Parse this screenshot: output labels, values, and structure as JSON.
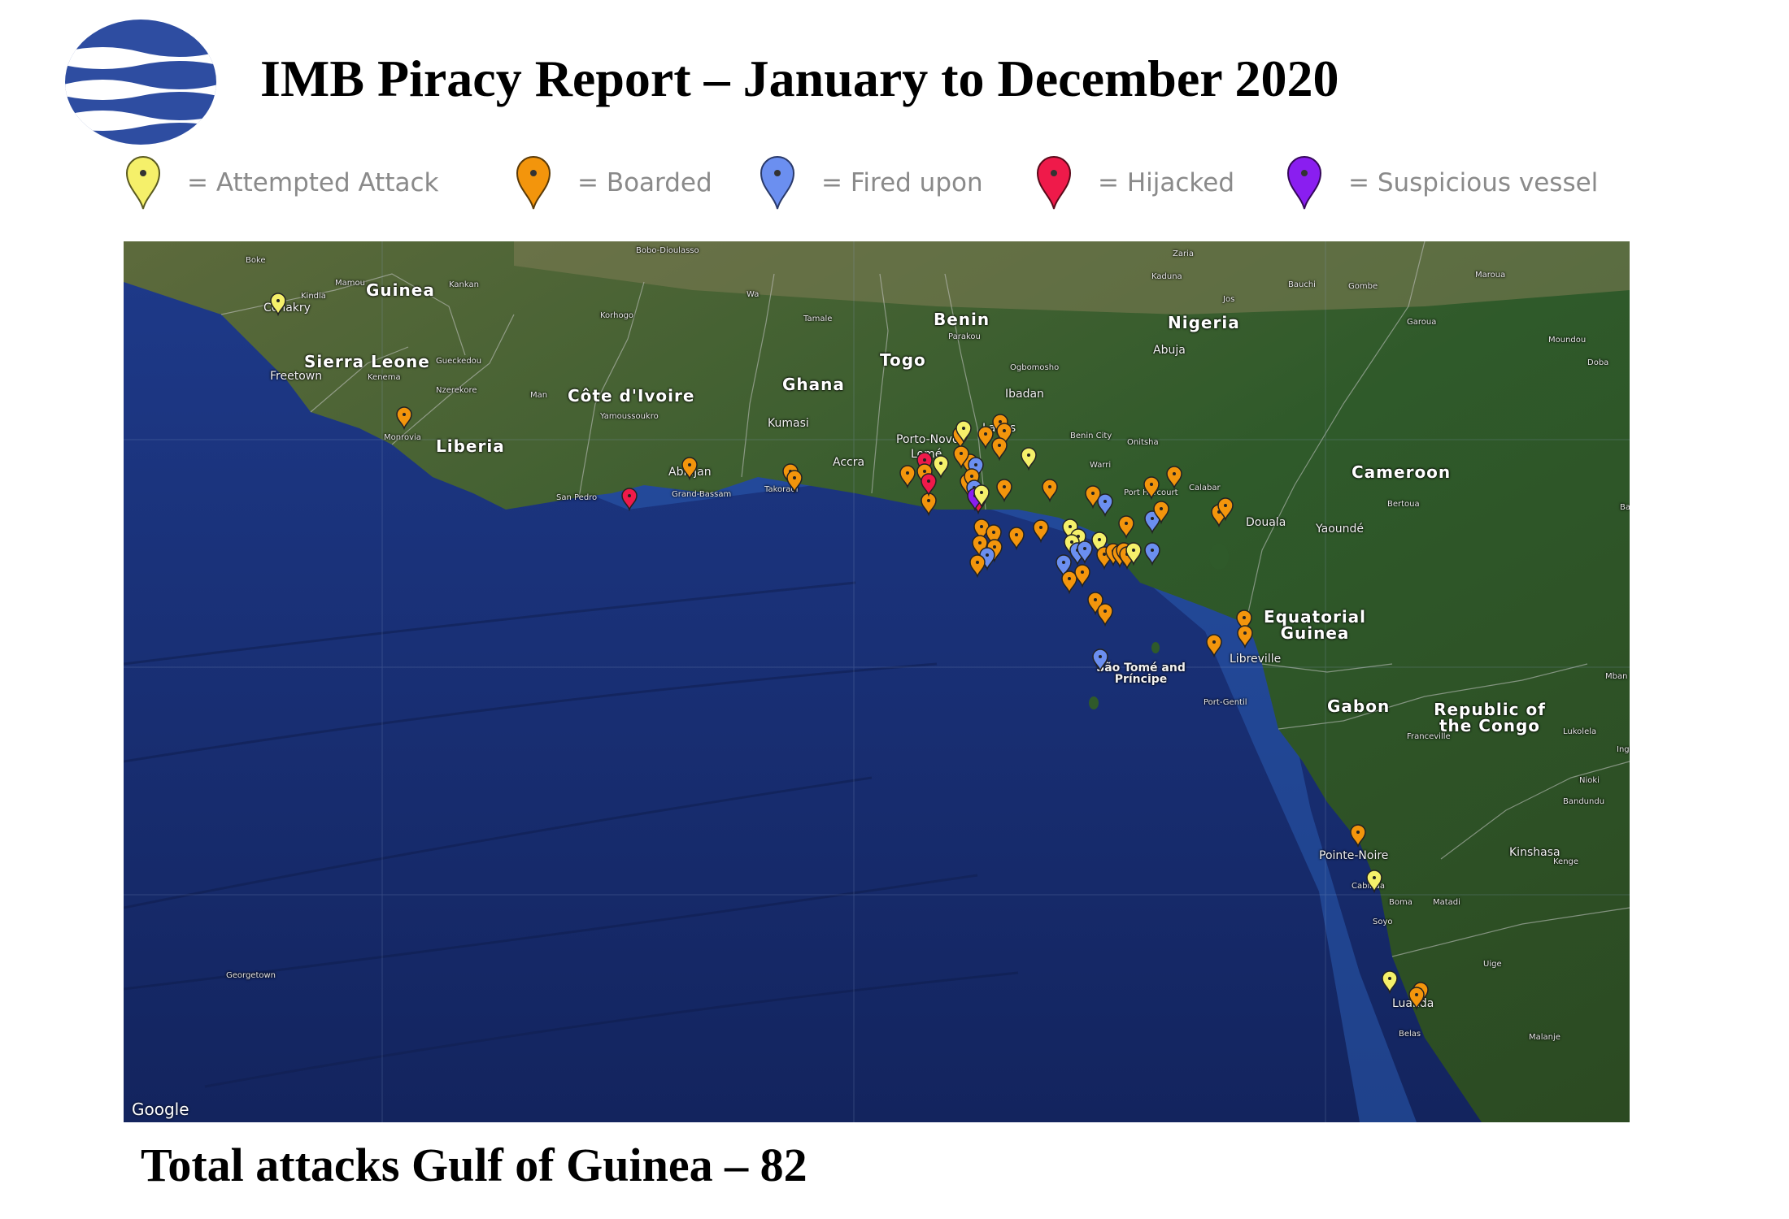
{
  "header": {
    "title": "IMB Piracy Report – January to December 2020"
  },
  "legend": [
    {
      "label": "= Attempted Attack",
      "color": "#f5f06a",
      "icon": "map-pin-icon"
    },
    {
      "label": "= Boarded",
      "color": "#f3950c",
      "icon": "map-pin-icon"
    },
    {
      "label": "= Fired upon",
      "color": "#6b8ff0",
      "icon": "map-pin-icon"
    },
    {
      "label": "= Hijacked",
      "color": "#ef1a4a",
      "icon": "map-pin-icon"
    },
    {
      "label": "= Suspicious vessel",
      "color": "#8a1ef0",
      "icon": "map-pin-icon"
    }
  ],
  "map": {
    "countries": [
      "Guinea",
      "Sierra Leone",
      "Liberia",
      "Côte d'Ivoire",
      "Ghana",
      "Togo",
      "Benin",
      "Nigeria",
      "Cameroon",
      "Equatorial Guinea",
      "Gabon",
      "Republic of the Congo",
      "São Tomé and Príncipe"
    ],
    "cities": [
      "Conakry",
      "Freetown",
      "Monrovia",
      "Abidjan",
      "San Pedro",
      "Takoradi",
      "Accra",
      "Kumasi",
      "Porto-Novo",
      "Lomé",
      "Lagos",
      "Ibadan",
      "Abuja",
      "Benin City",
      "Warri",
      "Port Harcourt",
      "Calabar",
      "Douala",
      "Yaoundé",
      "Libreville",
      "Port-Gentil",
      "Pointe-Noire",
      "Kinshasa",
      "Cabinda",
      "Soyo",
      "Boma",
      "Matadi",
      "Luanda",
      "Bobo-Dioulasso",
      "Korhogo",
      "Tamale",
      "Parakou",
      "Ogbomosho",
      "Kaduna",
      "Zaria",
      "Bauchi",
      "Gombe",
      "Jos",
      "Garoua",
      "Maroua",
      "Bertoua",
      "Franceville",
      "Georgetown",
      "Yamoussoukro",
      "Kankan",
      "Kenema",
      "Boke",
      "Kindia",
      "Mamou",
      "Nzerekore",
      "Gueckedou",
      "Man",
      "Grand-Bassam",
      "Onitsha",
      "Moundou",
      "Doba",
      "Lukolela",
      "Bandundu",
      "Nioki",
      "Kenge",
      "Uige",
      "Malanje",
      "Belas",
      "Mban",
      "Inga",
      "Ba",
      "Wa"
    ],
    "attribution": "Google"
  },
  "footer": {
    "total_text": "Total attacks Gulf of Guinea – 82"
  }
}
